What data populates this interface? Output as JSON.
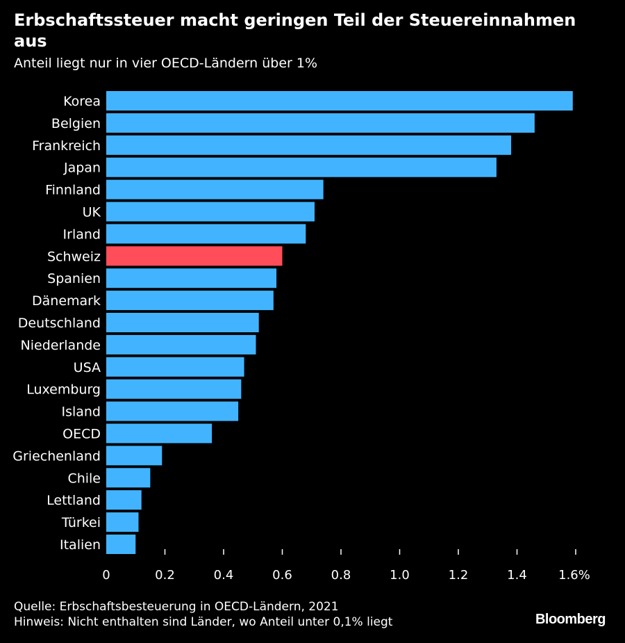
{
  "header": {
    "title": "Erbschaftssteuer macht geringen Teil der Steuereinnahmen aus",
    "subtitle": "Anteil liegt nur in vier OECD-Ländern über 1%"
  },
  "footer": {
    "source": "Quelle: Erbschaftsbesteuerung in OECD-Ländern, 2021",
    "note": "Hinweis: Nicht enthalten sind Länder, wo Anteil unter 0,1% liegt",
    "brand": "Bloomberg"
  },
  "colors": {
    "bar": "#42b4ff",
    "highlight": "#ff4d5a",
    "background": "#000000",
    "text": "#ffffff"
  },
  "chart_data": {
    "type": "bar",
    "orientation": "horizontal",
    "title": "Erbschaftssteuer macht geringen Teil der Steuereinnahmen aus",
    "subtitle": "Anteil liegt nur in vier OECD-Ländern über 1%",
    "xlabel": "",
    "ylabel": "",
    "xlim": [
      0,
      1.6
    ],
    "ticks": [
      0,
      0.2,
      0.4,
      0.6,
      0.8,
      1.0,
      1.2,
      1.4,
      1.6
    ],
    "tick_labels": [
      "0",
      "0.2",
      "0.4",
      "0.6",
      "0.8",
      "1.0",
      "1.2",
      "1.4",
      "1.6%"
    ],
    "highlight": "Schweiz",
    "categories": [
      "Korea",
      "Belgien",
      "Frankreich",
      "Japan",
      "Finnland",
      "UK",
      "Irland",
      "Schweiz",
      "Spanien",
      "Dänemark",
      "Deutschland",
      "Niederlande",
      "USA",
      "Luxemburg",
      "Island",
      "OECD",
      "Griechenland",
      "Chile",
      "Lettland",
      "Türkei",
      "Italien"
    ],
    "values": [
      1.59,
      1.46,
      1.38,
      1.33,
      0.74,
      0.71,
      0.68,
      0.6,
      0.58,
      0.57,
      0.52,
      0.51,
      0.47,
      0.46,
      0.45,
      0.36,
      0.19,
      0.15,
      0.12,
      0.11,
      0.1
    ]
  }
}
